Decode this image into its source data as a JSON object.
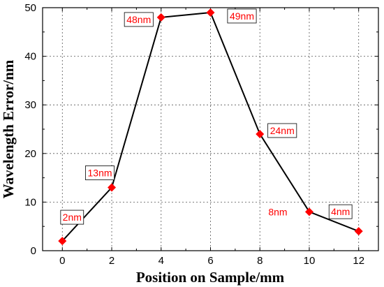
{
  "chart_data": {
    "type": "line",
    "title": "",
    "xlabel": "Position on Sample/mm",
    "ylabel": "Wavelength Error/nm",
    "xlim": [
      -0.8,
      12.8
    ],
    "ylim": [
      0,
      50
    ],
    "x_ticks": [
      0,
      2,
      4,
      6,
      8,
      10,
      12
    ],
    "y_ticks": [
      0,
      10,
      20,
      30,
      40,
      50
    ],
    "x_tick_labels": [
      "0",
      "2",
      "4",
      "6",
      "8",
      "10",
      "12"
    ],
    "y_tick_labels": [
      "0",
      "10",
      "20",
      "30",
      "40",
      "50"
    ],
    "grid": true,
    "legend": "none",
    "series": [
      {
        "x": [
          0,
          2,
          4,
          6,
          8,
          10,
          12
        ],
        "y": [
          2,
          13,
          48,
          49,
          24,
          8,
          4
        ],
        "line_color": "#000000",
        "marker": "diamond",
        "marker_color": "#ff0000"
      }
    ],
    "data_labels": [
      "2nm",
      "13nm",
      "48nm",
      "49nm",
      "24nm",
      "8nm",
      "4nm"
    ],
    "label_color": "#ff0000"
  }
}
